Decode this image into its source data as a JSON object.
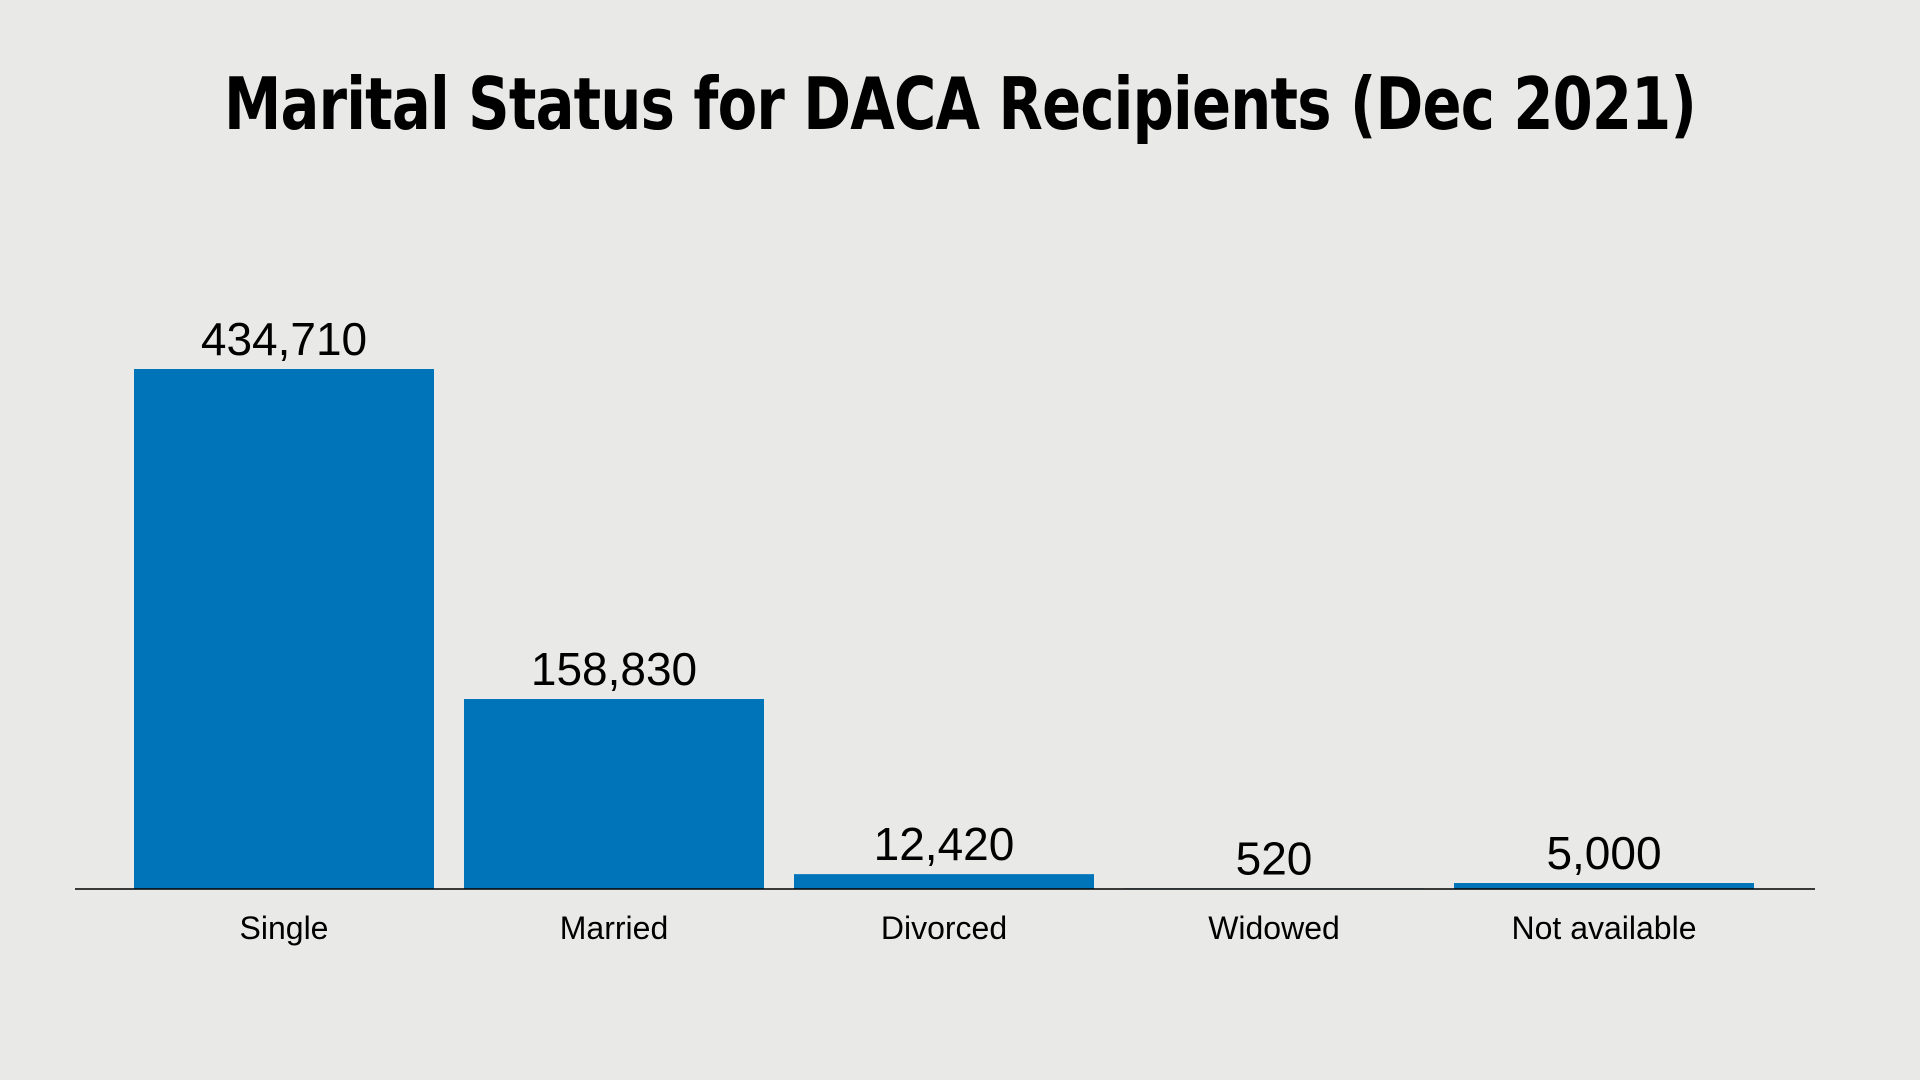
{
  "chart_data": {
    "type": "bar",
    "title": "Marital Status for DACA Recipients (Dec 2021)",
    "categories": [
      "Single",
      "Married",
      "Divorced",
      "Widowed",
      "Not available"
    ],
    "values": [
      434710,
      158830,
      12420,
      520,
      5000
    ],
    "value_labels": [
      "434,710",
      "158,830",
      "12,420",
      "520",
      "5,000"
    ],
    "ylim": [
      0,
      434710
    ],
    "bar_color": "#0074b9",
    "baseline_color": "#000000",
    "background_color": "#e9eae8",
    "grid": false,
    "legend": "none"
  }
}
